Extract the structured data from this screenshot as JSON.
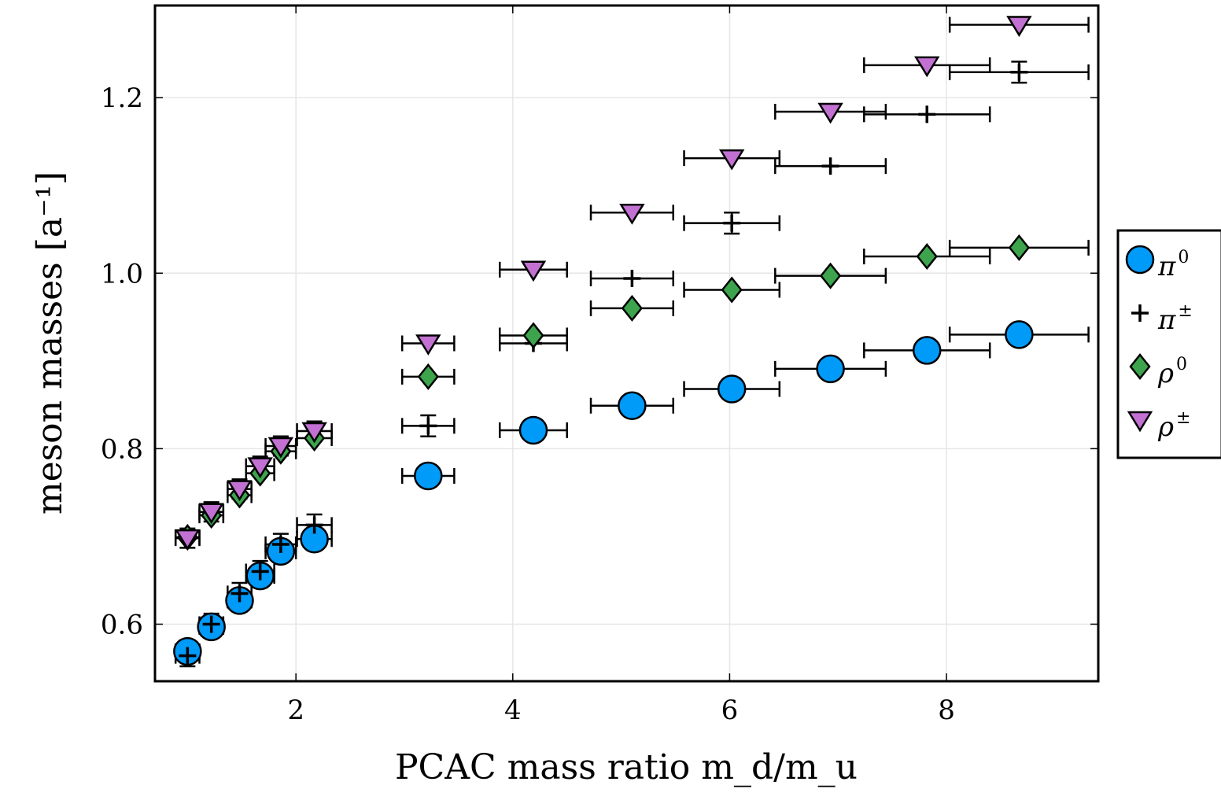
{
  "chart_data": {
    "type": "scatter",
    "xlabel": "PCAC mass ratio m_d/m_u",
    "ylabel": "meson masses [a⁻¹]",
    "xlim": [
      0.7,
      9.4
    ],
    "ylim": [
      0.535,
      1.305
    ],
    "x_ticks": [
      "2",
      "4",
      "6",
      "8"
    ],
    "x_tick_values": [
      2,
      4,
      6,
      8
    ],
    "y_ticks": [
      "0.6",
      "0.8",
      "1.0",
      "1.2"
    ],
    "y_tick_values": [
      0.6,
      0.8,
      1.0,
      1.2
    ],
    "grid": true,
    "legend_position": "outside-right",
    "series": [
      {
        "name": "π⁰",
        "legend_base": "π",
        "legend_sup": "0",
        "marker": "circle",
        "color": "#009af9",
        "points": [
          {
            "x": 1.0,
            "y": 0.569,
            "xerr": 0.11,
            "yerr": 0.0
          },
          {
            "x": 1.22,
            "y": 0.597,
            "xerr": 0.11,
            "yerr": 0.0
          },
          {
            "x": 1.48,
            "y": 0.627,
            "xerr": 0.11,
            "yerr": 0.0
          },
          {
            "x": 1.67,
            "y": 0.655,
            "xerr": 0.13,
            "yerr": 0.0
          },
          {
            "x": 1.86,
            "y": 0.683,
            "xerr": 0.14,
            "yerr": 0.0
          },
          {
            "x": 2.17,
            "y": 0.697,
            "xerr": 0.16,
            "yerr": 0.0
          },
          {
            "x": 3.22,
            "y": 0.769,
            "xerr": 0.24,
            "yerr": 0.0
          },
          {
            "x": 4.19,
            "y": 0.821,
            "xerr": 0.31,
            "yerr": 0.0
          },
          {
            "x": 5.1,
            "y": 0.849,
            "xerr": 0.38,
            "yerr": 0.0
          },
          {
            "x": 6.02,
            "y": 0.868,
            "xerr": 0.44,
            "yerr": 0.0
          },
          {
            "x": 6.93,
            "y": 0.891,
            "xerr": 0.51,
            "yerr": 0.0
          },
          {
            "x": 7.82,
            "y": 0.912,
            "xerr": 0.58,
            "yerr": 0.0
          },
          {
            "x": 8.67,
            "y": 0.93,
            "xerr": 0.64,
            "yerr": 0.0
          }
        ]
      },
      {
        "name": "π±",
        "legend_base": "π",
        "legend_sup": "±",
        "marker": "plus",
        "color": "#000000",
        "points": [
          {
            "x": 1.0,
            "y": 0.564,
            "xerr": 0.11,
            "yerr": 0.012
          },
          {
            "x": 1.22,
            "y": 0.6,
            "xerr": 0.11,
            "yerr": 0.012
          },
          {
            "x": 1.48,
            "y": 0.635,
            "xerr": 0.11,
            "yerr": 0.012
          },
          {
            "x": 1.67,
            "y": 0.66,
            "xerr": 0.13,
            "yerr": 0.012
          },
          {
            "x": 1.86,
            "y": 0.691,
            "xerr": 0.14,
            "yerr": 0.012
          },
          {
            "x": 2.17,
            "y": 0.713,
            "xerr": 0.16,
            "yerr": 0.012
          },
          {
            "x": 3.22,
            "y": 0.826,
            "xerr": 0.24,
            "yerr": 0.012
          },
          {
            "x": 4.19,
            "y": 0.92,
            "xerr": 0.31,
            "yerr": 0.0
          },
          {
            "x": 5.1,
            "y": 0.994,
            "xerr": 0.38,
            "yerr": 0.0
          },
          {
            "x": 6.02,
            "y": 1.057,
            "xerr": 0.44,
            "yerr": 0.012
          },
          {
            "x": 6.93,
            "y": 1.122,
            "xerr": 0.51,
            "yerr": 0.0
          },
          {
            "x": 7.82,
            "y": 1.181,
            "xerr": 0.58,
            "yerr": 0.0
          },
          {
            "x": 8.67,
            "y": 1.229,
            "xerr": 0.64,
            "yerr": 0.012
          }
        ]
      },
      {
        "name": "ρ⁰",
        "legend_base": "ρ",
        "legend_sup": "0",
        "marker": "diamond",
        "color": "#3da44d",
        "points": [
          {
            "x": 1.0,
            "y": 0.699,
            "xerr": 0.11,
            "yerr": 0.0
          },
          {
            "x": 1.22,
            "y": 0.724,
            "xerr": 0.11,
            "yerr": 0.0
          },
          {
            "x": 1.48,
            "y": 0.747,
            "xerr": 0.11,
            "yerr": 0.0
          },
          {
            "x": 1.67,
            "y": 0.772,
            "xerr": 0.13,
            "yerr": 0.0
          },
          {
            "x": 1.86,
            "y": 0.797,
            "xerr": 0.14,
            "yerr": 0.0
          },
          {
            "x": 2.17,
            "y": 0.812,
            "xerr": 0.16,
            "yerr": 0.0
          },
          {
            "x": 3.22,
            "y": 0.882,
            "xerr": 0.24,
            "yerr": 0.0
          },
          {
            "x": 4.19,
            "y": 0.929,
            "xerr": 0.31,
            "yerr": 0.0
          },
          {
            "x": 5.1,
            "y": 0.96,
            "xerr": 0.38,
            "yerr": 0.0
          },
          {
            "x": 6.02,
            "y": 0.981,
            "xerr": 0.44,
            "yerr": 0.0
          },
          {
            "x": 6.93,
            "y": 0.997,
            "xerr": 0.51,
            "yerr": 0.0
          },
          {
            "x": 7.82,
            "y": 1.019,
            "xerr": 0.58,
            "yerr": 0.0
          },
          {
            "x": 8.67,
            "y": 1.029,
            "xerr": 0.64,
            "yerr": 0.0
          }
        ]
      },
      {
        "name": "ρ±",
        "legend_base": "ρ",
        "legend_sup": "±",
        "marker": "triangle-down",
        "color": "#c271d2",
        "points": [
          {
            "x": 1.0,
            "y": 0.698,
            "xerr": 0.11,
            "yerr": 0.011
          },
          {
            "x": 1.22,
            "y": 0.728,
            "xerr": 0.11,
            "yerr": 0.011
          },
          {
            "x": 1.48,
            "y": 0.754,
            "xerr": 0.11,
            "yerr": 0.011
          },
          {
            "x": 1.67,
            "y": 0.78,
            "xerr": 0.13,
            "yerr": 0.011
          },
          {
            "x": 1.86,
            "y": 0.803,
            "xerr": 0.14,
            "yerr": 0.011
          },
          {
            "x": 2.17,
            "y": 0.82,
            "xerr": 0.16,
            "yerr": 0.011
          },
          {
            "x": 3.22,
            "y": 0.92,
            "xerr": 0.24,
            "yerr": 0.0
          },
          {
            "x": 4.19,
            "y": 1.004,
            "xerr": 0.31,
            "yerr": 0.0
          },
          {
            "x": 5.1,
            "y": 1.069,
            "xerr": 0.38,
            "yerr": 0.0
          },
          {
            "x": 6.02,
            "y": 1.131,
            "xerr": 0.44,
            "yerr": 0.0
          },
          {
            "x": 6.93,
            "y": 1.184,
            "xerr": 0.51,
            "yerr": 0.0
          },
          {
            "x": 7.82,
            "y": 1.237,
            "xerr": 0.58,
            "yerr": 0.0
          },
          {
            "x": 8.67,
            "y": 1.283,
            "xerr": 0.64,
            "yerr": 0.0
          }
        ]
      }
    ]
  }
}
